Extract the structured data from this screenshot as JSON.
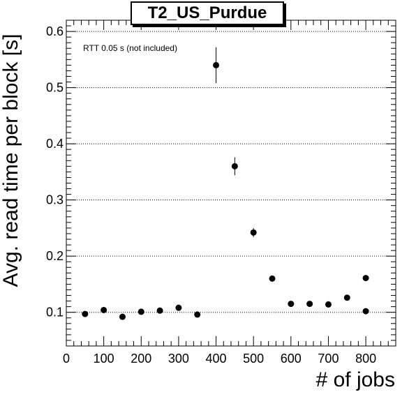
{
  "chart_data": {
    "type": "scatter",
    "title": "T2_US_Purdue",
    "xlabel": "# of jobs",
    "ylabel": "Avg. read time per block [s]",
    "annotation": "RTT 0.05 s (not included)",
    "xlim": [
      0,
      880
    ],
    "ylim": [
      0.04,
      0.62
    ],
    "x_ticks": [
      0,
      100,
      200,
      300,
      400,
      500,
      600,
      700,
      800
    ],
    "y_ticks": [
      0.1,
      0.2,
      0.3,
      0.4,
      0.5,
      0.6
    ],
    "y_tick_labels": [
      "0.1",
      "0.2",
      "0.3",
      "0.4",
      "0.5",
      "0.6"
    ],
    "grid": "horizontal dotted",
    "marker_color": "#000000",
    "points": [
      {
        "x": 50,
        "y": 0.097,
        "err": 0.003
      },
      {
        "x": 100,
        "y": 0.104,
        "err": 0.003
      },
      {
        "x": 150,
        "y": 0.092,
        "err": 0.003
      },
      {
        "x": 200,
        "y": 0.101,
        "err": 0.003
      },
      {
        "x": 250,
        "y": 0.103,
        "err": 0.003
      },
      {
        "x": 300,
        "y": 0.108,
        "err": 0.003
      },
      {
        "x": 350,
        "y": 0.096,
        "err": 0.003
      },
      {
        "x": 400,
        "y": 0.54,
        "err": 0.032
      },
      {
        "x": 450,
        "y": 0.36,
        "err": 0.016
      },
      {
        "x": 500,
        "y": 0.242,
        "err": 0.008
      },
      {
        "x": 550,
        "y": 0.16,
        "err": 0.004
      },
      {
        "x": 600,
        "y": 0.115,
        "err": 0.003
      },
      {
        "x": 650,
        "y": 0.115,
        "err": 0.003
      },
      {
        "x": 700,
        "y": 0.114,
        "err": 0.003
      },
      {
        "x": 750,
        "y": 0.126,
        "err": 0.003
      },
      {
        "x": 800,
        "y": 0.161,
        "err": 0.004
      },
      {
        "x": 800,
        "y": 0.102,
        "err": 0.003
      }
    ]
  }
}
